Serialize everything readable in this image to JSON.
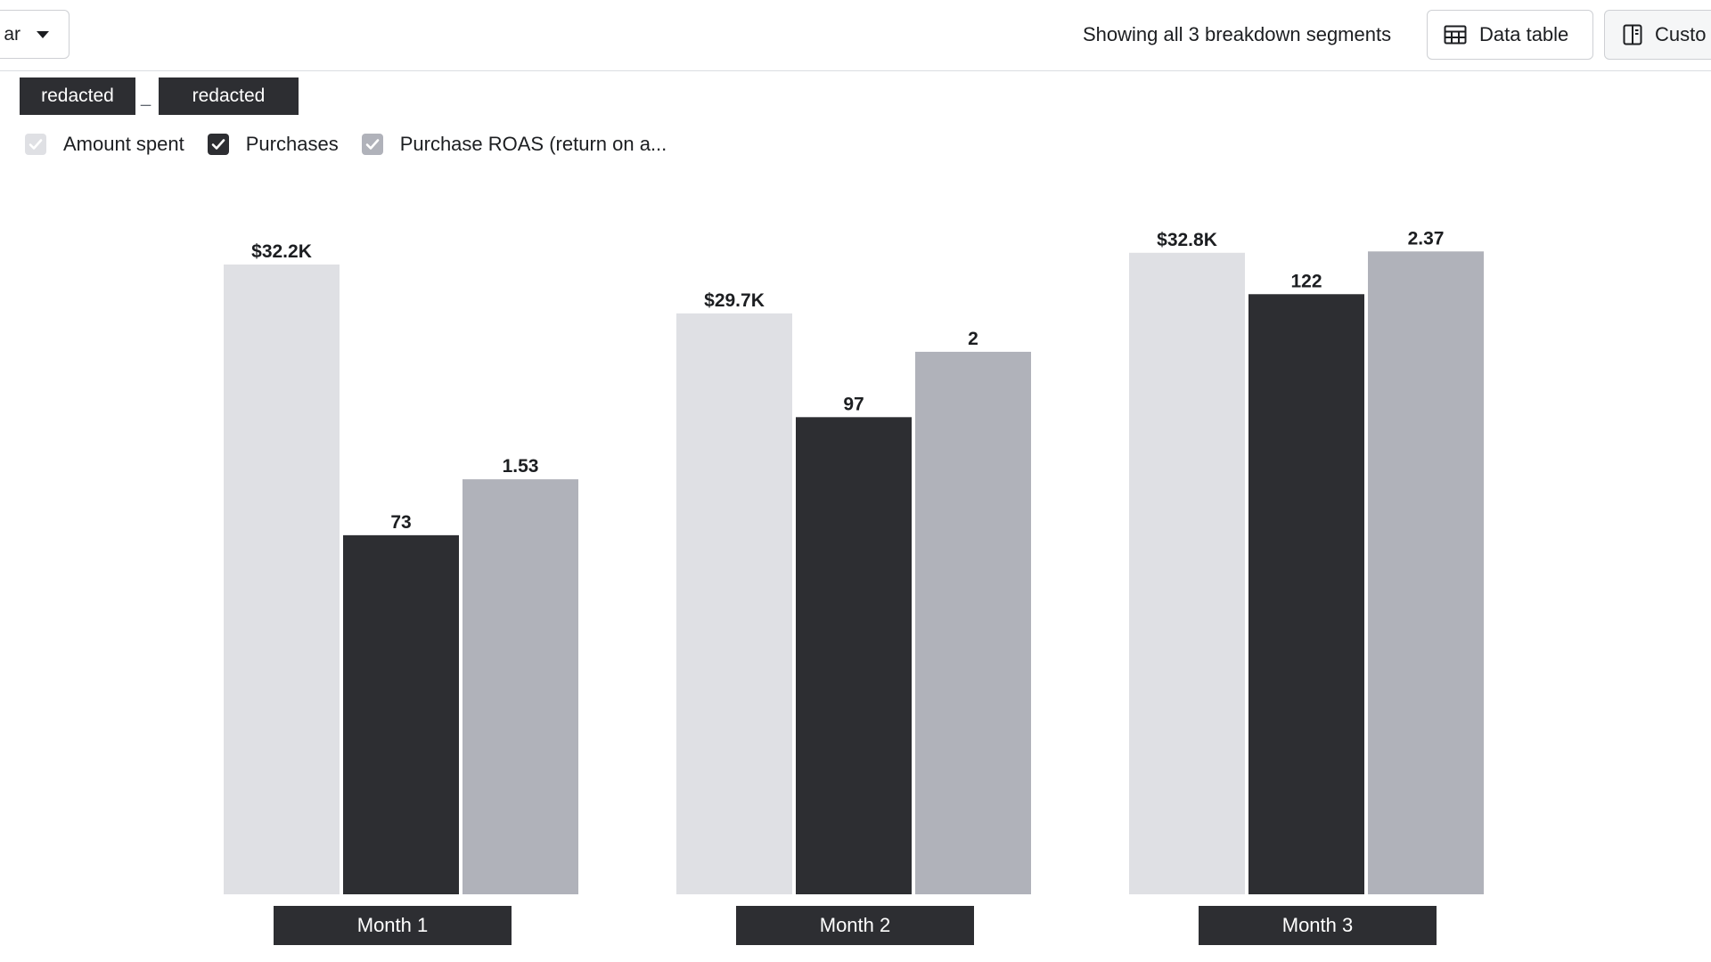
{
  "toolbar": {
    "chart_type_label": "ar",
    "segments_text": "Showing all 3 breakdown segments",
    "data_table_label": "Data table",
    "customize_label": "Custo",
    "date_start": "redacted",
    "date_separator": "_",
    "date_end": "redacted"
  },
  "legend": [
    {
      "label": "Amount spent",
      "checked": true,
      "color": "#dfe0e4"
    },
    {
      "label": "Purchases",
      "checked": true,
      "color": "#2d2e32"
    },
    {
      "label": "Purchase ROAS (return on a...",
      "checked": true,
      "color": "#b0b2ba"
    }
  ],
  "chart_data": {
    "type": "bar",
    "categories": [
      "Month 1",
      "Month 2",
      "Month 3"
    ],
    "series": [
      {
        "name": "Amount spent",
        "values": [
          32200,
          29700,
          32800
        ],
        "labels": [
          "$32.2K",
          "$29.7K",
          "$32.8K"
        ],
        "color": "#dfe0e4"
      },
      {
        "name": "Purchases",
        "values": [
          73,
          97,
          122
        ],
        "labels": [
          "73",
          "97",
          "122"
        ],
        "color": "#2d2e32"
      },
      {
        "name": "Purchase ROAS (return on a...",
        "values": [
          1.53,
          2,
          2.37
        ],
        "labels": [
          "1.53",
          "2",
          "2.37"
        ],
        "color": "#b0b2ba"
      }
    ],
    "ylim_per_series": [
      [
        0,
        33700
      ],
      [
        0,
        134
      ],
      [
        0,
        2.43
      ]
    ],
    "independent_axes": true,
    "grid": false,
    "axis_labels_shown": false
  }
}
